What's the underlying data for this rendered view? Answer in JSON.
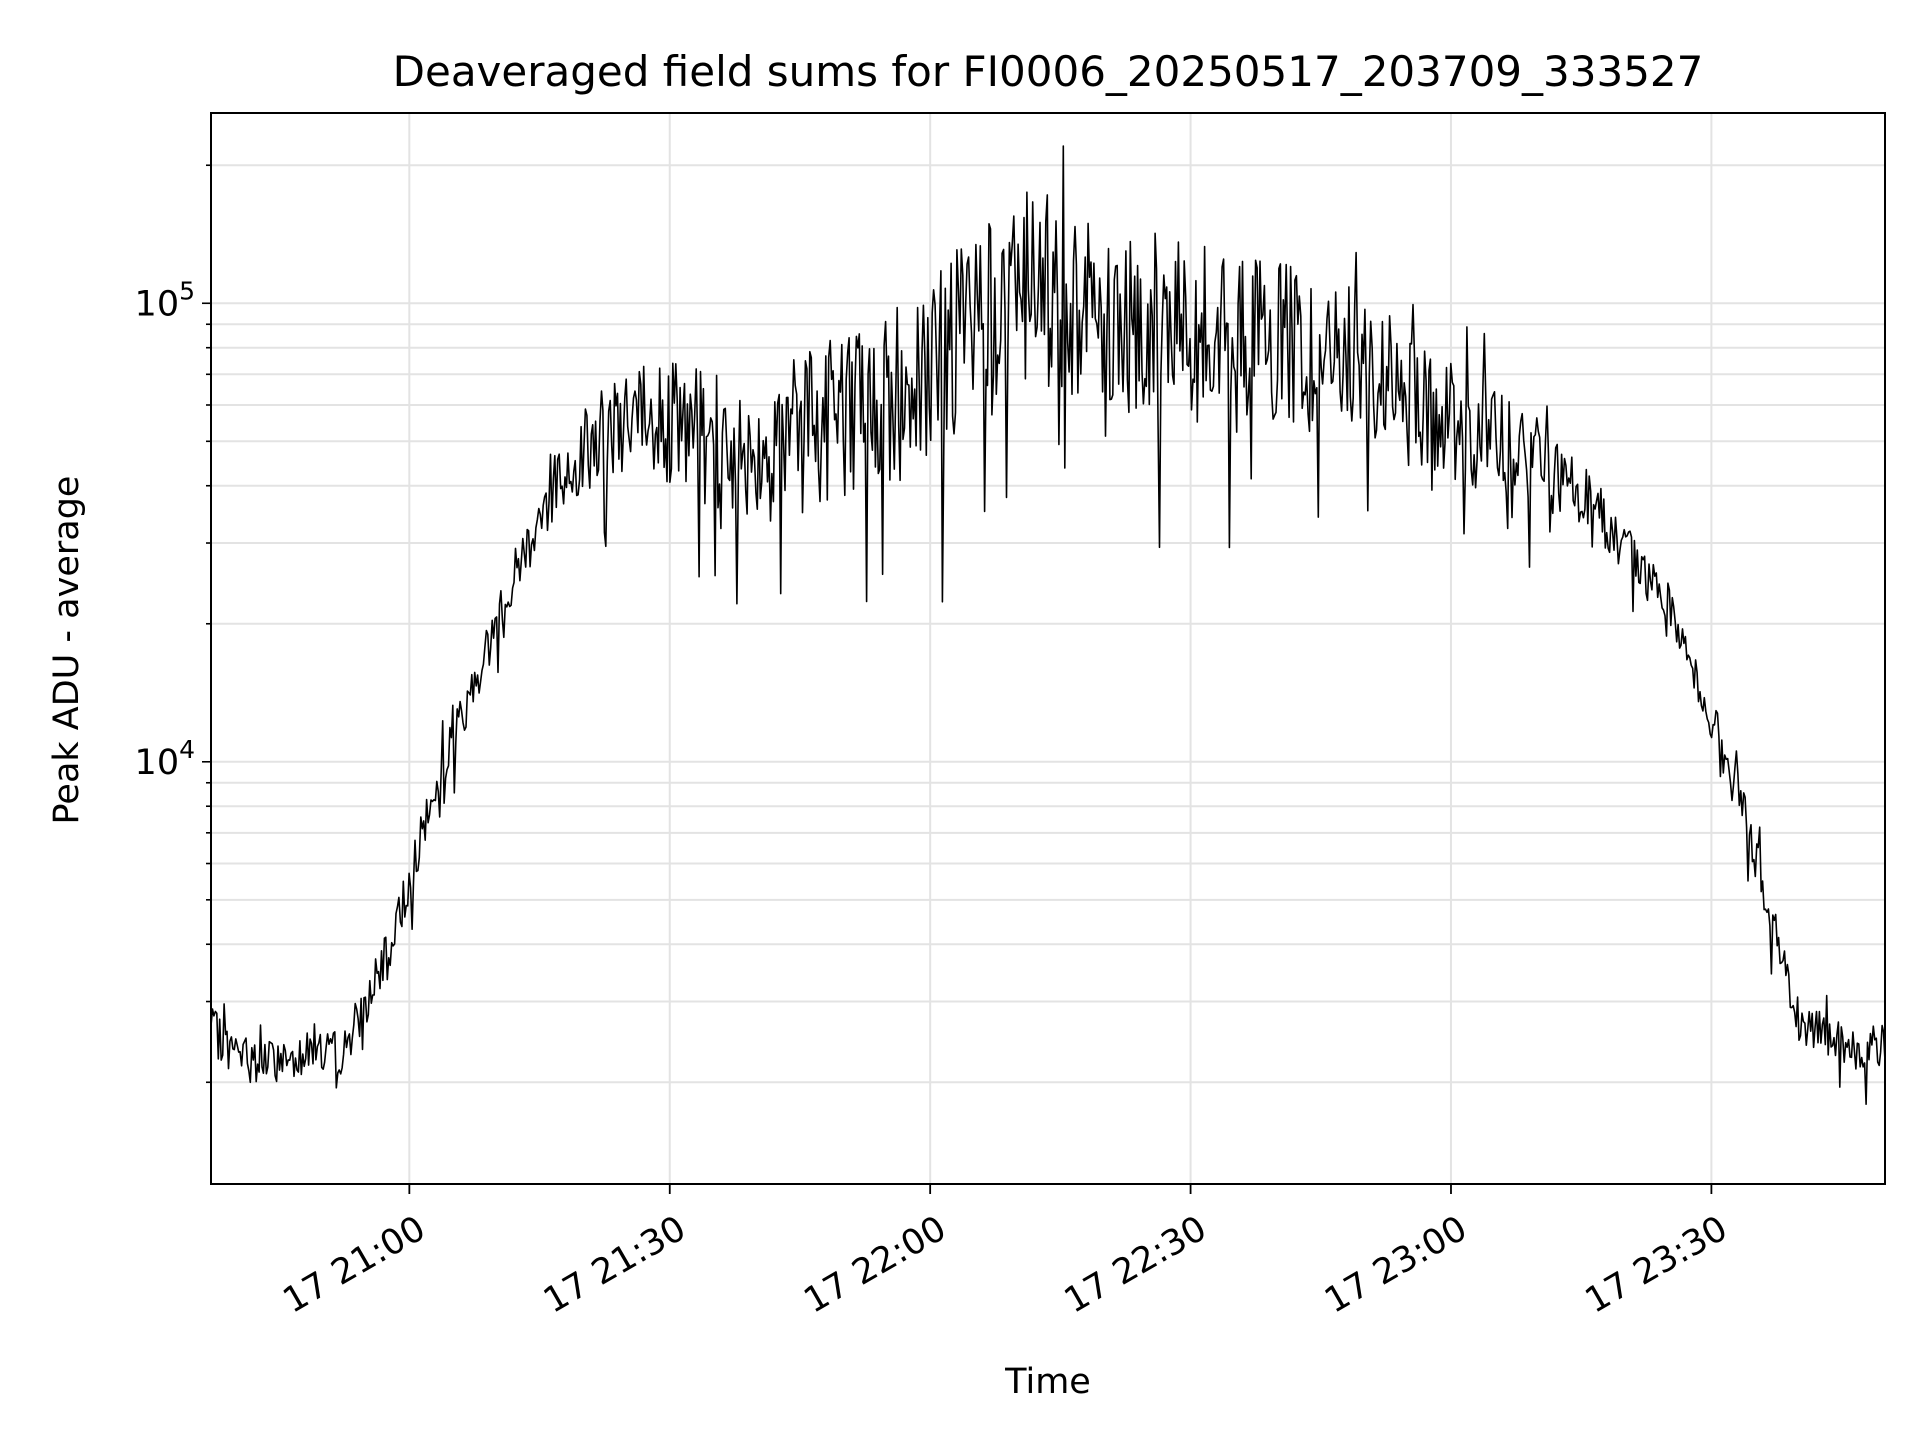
{
  "chart_data": {
    "type": "line",
    "title": "Deaveraged field sums for FI0006_20250517_203709_333527",
    "xlabel": "Time",
    "ylabel": "Peak ADU - average",
    "yscale": "log",
    "xlim": [
      "2025-05-17 20:37:09",
      "2025-05-17 23:50:00"
    ],
    "ylim": [
      1200,
      260000
    ],
    "grid": true,
    "line_color": "#000000",
    "x_ticks": [
      "2025-05-17 21:00",
      "2025-05-17 21:30",
      "2025-05-17 22:00",
      "2025-05-17 22:30",
      "2025-05-17 23:00",
      "2025-05-17 23:30"
    ],
    "x_tick_labels": [
      "17 21:00",
      "17 21:30",
      "17 22:00",
      "17 22:30",
      "17 23:00",
      "17 23:30"
    ],
    "y_major_ticks": [
      {
        "value": 10000,
        "base": "10",
        "exp": "4"
      },
      {
        "value": 100000,
        "base": "10",
        "exp": "5"
      }
    ],
    "series": [
      {
        "x": [
          "2025-05-17 20:37:09",
          "2025-05-17 20:40:00",
          "2025-05-17 20:43:00",
          "2025-05-17 20:46:00",
          "2025-05-17 20:49:00",
          "2025-05-17 20:52:00",
          "2025-05-17 20:55:00",
          "2025-05-17 20:58:00",
          "2025-05-17 21:01:00",
          "2025-05-17 21:04:00",
          "2025-05-17 21:07:00",
          "2025-05-17 21:10:00",
          "2025-05-17 21:13:00",
          "2025-05-17 21:16:00",
          "2025-05-17 21:20:00",
          "2025-05-17 21:25:00",
          "2025-05-17 21:30:00",
          "2025-05-17 21:35:00",
          "2025-05-17 21:40:00",
          "2025-05-17 21:45:00",
          "2025-05-17 21:50:00",
          "2025-05-17 21:55:00",
          "2025-05-17 22:00:00",
          "2025-05-17 22:05:00",
          "2025-05-17 22:10:00",
          "2025-05-17 22:15:00",
          "2025-05-17 22:20:00",
          "2025-05-17 22:25:00",
          "2025-05-17 22:30:00",
          "2025-05-17 22:35:00",
          "2025-05-17 22:40:00",
          "2025-05-17 22:45:00",
          "2025-05-17 22:50:00",
          "2025-05-17 22:55:00",
          "2025-05-17 23:00:00",
          "2025-05-17 23:05:00",
          "2025-05-17 23:10:00",
          "2025-05-17 23:15:00",
          "2025-05-17 23:20:00",
          "2025-05-17 23:25:00",
          "2025-05-17 23:28:00",
          "2025-05-17 23:31:00",
          "2025-05-17 23:34:00",
          "2025-05-17 23:37:00",
          "2025-05-17 23:40:00",
          "2025-05-17 23:43:00",
          "2025-05-17 23:46:00",
          "2025-05-17 23:50:00"
        ],
        "y": [
          2600,
          2300,
          2200,
          2250,
          2400,
          2300,
          3000,
          4000,
          6500,
          10000,
          14000,
          20000,
          28000,
          38000,
          48000,
          55000,
          55000,
          50000,
          48000,
          52000,
          58000,
          62000,
          70000,
          90000,
          110000,
          105000,
          95000,
          90000,
          85000,
          82000,
          80000,
          78000,
          72000,
          62000,
          55000,
          50000,
          45000,
          38000,
          30000,
          22000,
          16000,
          11000,
          7500,
          4500,
          2800,
          2500,
          2400,
          2400
        ]
      }
    ]
  }
}
